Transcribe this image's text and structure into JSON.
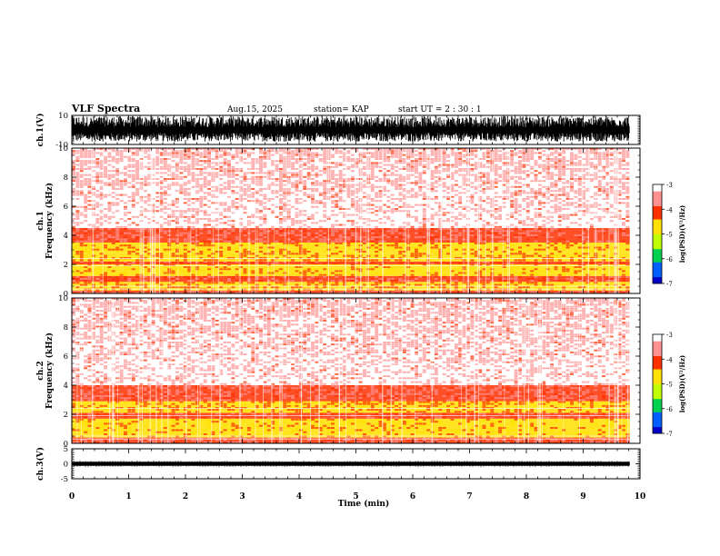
{
  "header": {
    "title": "VLF Spectra",
    "date": "Aug.15, 2025",
    "station": "station= KAP",
    "start": "start  UT  =   2  : 30 : 1"
  },
  "colors": {
    "axis": "#000000",
    "colormap": [
      "#0000c8",
      "#0060ff",
      "#00d050",
      "#c0ff00",
      "#ffe000",
      "#ff3000",
      "#ff9090",
      "#ffffff"
    ]
  },
  "chart_data": [
    {
      "type": "line",
      "name": "ch1-waveform",
      "ylabel": "ch.1(V)",
      "ylim": [
        -10,
        10
      ],
      "yticks": [
        "10",
        "-10"
      ],
      "x": [
        0,
        9.82
      ],
      "note": "dense waveform, amplitude roughly -8 to 9 V"
    },
    {
      "type": "heatmap",
      "name": "ch1-spectrogram",
      "ylabel": "ch.1\nFrequency (kHz)",
      "ylim": [
        0,
        10
      ],
      "yticks": [
        "0",
        "2",
        "4",
        "6",
        "8",
        "10"
      ],
      "xlim": [
        0,
        9.82
      ],
      "bands": [
        {
          "from_khz": 0.0,
          "to_khz": 0.2,
          "level": -4.0
        },
        {
          "from_khz": 0.2,
          "to_khz": 0.8,
          "level": -4.6
        },
        {
          "from_khz": 0.8,
          "to_khz": 1.2,
          "level": -4.2
        },
        {
          "from_khz": 1.2,
          "to_khz": 2.0,
          "level": -4.8
        },
        {
          "from_khz": 2.0,
          "to_khz": 2.2,
          "level": -4.3
        },
        {
          "from_khz": 2.2,
          "to_khz": 2.8,
          "level": -4.6
        },
        {
          "from_khz": 2.8,
          "to_khz": 3.5,
          "level": -4.7
        },
        {
          "from_khz": 3.5,
          "to_khz": 4.5,
          "level": -4.0
        },
        {
          "from_khz": 4.5,
          "to_khz": 10.0,
          "level": -3.4
        }
      ],
      "colorbar": {
        "label": "log(PSD)(V²/Hz)",
        "range": [
          -7,
          -3
        ],
        "ticks": [
          "-3",
          "-4",
          "-5",
          "-6",
          "-7"
        ]
      }
    },
    {
      "type": "heatmap",
      "name": "ch2-spectrogram",
      "ylabel": "ch.2\nFrequency (kHz)",
      "ylim": [
        0,
        10
      ],
      "yticks": [
        "0",
        "2",
        "4",
        "6",
        "8",
        "10"
      ],
      "xlim": [
        0,
        9.82
      ],
      "bands": [
        {
          "from_khz": 0.0,
          "to_khz": 0.4,
          "level": -4.0
        },
        {
          "from_khz": 0.4,
          "to_khz": 1.7,
          "level": -4.8
        },
        {
          "from_khz": 1.7,
          "to_khz": 2.1,
          "level": -4.2
        },
        {
          "from_khz": 2.1,
          "to_khz": 2.9,
          "level": -4.6
        },
        {
          "from_khz": 2.9,
          "to_khz": 4.0,
          "level": -4.0
        },
        {
          "from_khz": 4.0,
          "to_khz": 10.0,
          "level": -3.4
        }
      ],
      "colorbar": {
        "label": "log(PSD)(V²/Hz)",
        "range": [
          -7,
          -3
        ],
        "ticks": [
          "-3",
          "-4",
          "-5",
          "-6",
          "-7"
        ]
      }
    },
    {
      "type": "line",
      "name": "ch3-waveform",
      "ylabel": "ch.3(V)",
      "ylim": [
        -5,
        5
      ],
      "yticks": [
        "5",
        "0",
        "-5"
      ],
      "x": [
        0,
        9.82
      ],
      "level_v": 0,
      "note": "near-constant signal around 0 V with small noise"
    }
  ],
  "xaxis": {
    "label": "Time  (min)",
    "range": [
      0,
      10
    ],
    "ticks": [
      "0",
      "1",
      "2",
      "3",
      "4",
      "5",
      "6",
      "7",
      "8",
      "9",
      "10"
    ]
  }
}
